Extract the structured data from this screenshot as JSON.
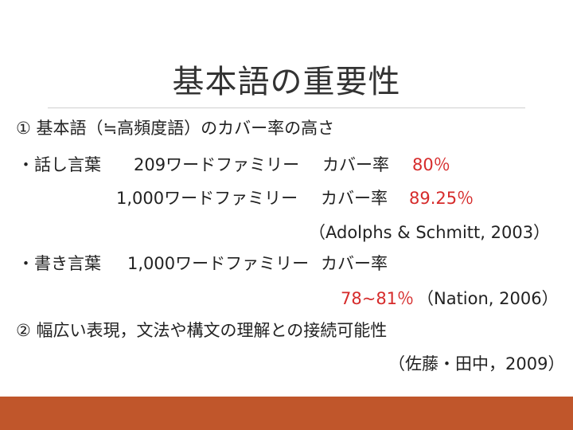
{
  "slide": {
    "title": "基本語の重要性",
    "point1": {
      "heading": "① 基本語（≒高頻度語）のカバー率の高さ",
      "spoken": {
        "label": "・話し言葉",
        "row1_families": "209ワードファミリー",
        "row1_cover": "カバー率",
        "row1_value": "80％",
        "row2_families": "1,000ワードファミリー",
        "row2_cover": "カバー率",
        "row2_value": "89.25％",
        "citation": "（Adolphs & Schmitt, 2003）"
      },
      "written": {
        "label": "・書き言葉",
        "families": "1,000ワードファミリー",
        "cover": "カバー率",
        "value": "78~81％",
        "citation": "（Nation, 2006）"
      }
    },
    "point2": {
      "heading": "② 幅広い表現，文法や構文の理解との接続可能性",
      "citation": "（佐藤・田中，2009）"
    }
  },
  "colors": {
    "accent_bar": "#c0562b",
    "highlight": "#d62b2b"
  }
}
